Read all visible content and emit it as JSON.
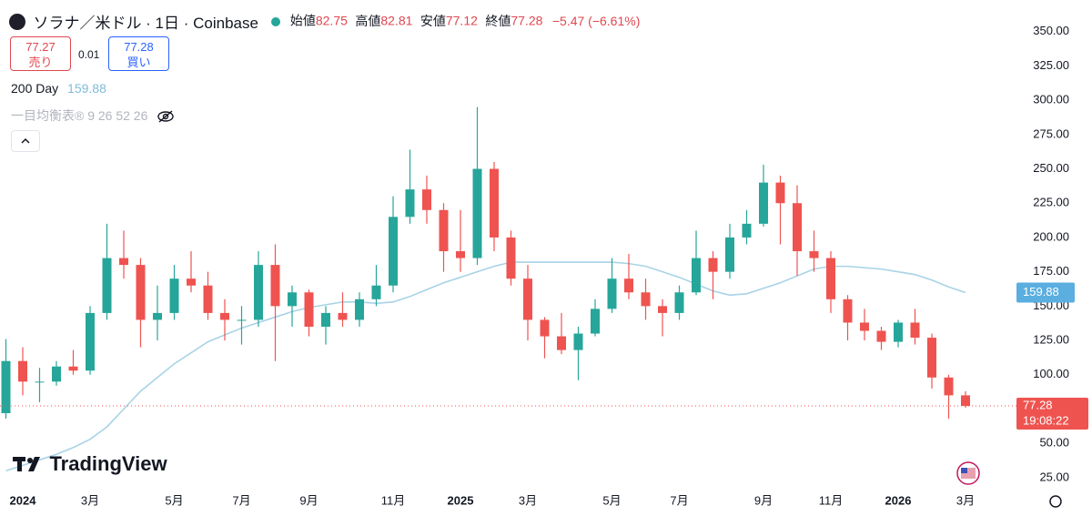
{
  "header": {
    "symbol": "ソラナ／米ドル · 1日 · Coinbase",
    "open_label": "始値",
    "open": "82.75",
    "high_label": "高値",
    "high": "82.81",
    "low_label": "安値",
    "low": "77.12",
    "close_label": "終値",
    "close": "77.28",
    "change": "−5.47 (−6.61%)",
    "sell_price": "77.27",
    "sell_label": "売り",
    "spread": "0.01",
    "buy_price": "77.28",
    "buy_label": "買い",
    "indicator": "一目均衡表® 9 26 52 26",
    "countdown": "19:08:22",
    "logo": "TradingView"
  },
  "chart_data": {
    "type": "candlestick",
    "categories": [
      null,
      "2024",
      null,
      null,
      null,
      "3月",
      null,
      null,
      null,
      null,
      "5月",
      null,
      null,
      null,
      "7月",
      null,
      null,
      null,
      "9月",
      null,
      null,
      null,
      null,
      "11月",
      null,
      null,
      null,
      "2025",
      null,
      null,
      null,
      "3月",
      null,
      null,
      null,
      null,
      "5月",
      null,
      null,
      null,
      "7月",
      null,
      null,
      null,
      null,
      "9月",
      null,
      null,
      null,
      "11月",
      null,
      null,
      null,
      "2026",
      null,
      null,
      null,
      "3月"
    ],
    "series": [
      {
        "up_color": "#26a69a",
        "down_color": "#ef5350",
        "open": [
          72,
          110,
          95,
          95,
          106,
          103,
          145,
          185,
          180,
          140,
          145,
          170,
          165,
          145,
          140,
          140,
          180,
          150,
          160,
          135,
          145,
          140,
          155,
          165,
          215,
          235,
          220,
          190,
          185,
          250,
          200,
          170,
          140,
          128,
          118,
          130,
          148,
          170,
          160,
          150,
          145,
          160,
          185,
          175,
          200,
          210,
          240,
          225,
          190,
          185,
          155,
          138,
          132,
          124,
          138,
          127,
          98,
          85
        ],
        "high": [
          126,
          120,
          105,
          110,
          118,
          150,
          210,
          205,
          185,
          165,
          180,
          190,
          175,
          155,
          150,
          190,
          195,
          165,
          162,
          150,
          160,
          160,
          180,
          230,
          264,
          245,
          225,
          220,
          295,
          255,
          205,
          180,
          142,
          145,
          135,
          155,
          185,
          188,
          170,
          155,
          165,
          205,
          190,
          210,
          220,
          253,
          245,
          238,
          205,
          190,
          158,
          148,
          135,
          140,
          148,
          130,
          100,
          88
        ],
        "low": [
          68,
          85,
          80,
          92,
          100,
          100,
          140,
          170,
          120,
          125,
          140,
          160,
          140,
          125,
          122,
          135,
          110,
          135,
          128,
          122,
          135,
          135,
          150,
          160,
          210,
          210,
          175,
          175,
          180,
          190,
          165,
          125,
          112,
          115,
          96,
          128,
          145,
          155,
          140,
          128,
          140,
          158,
          155,
          170,
          195,
          208,
          195,
          172,
          175,
          145,
          125,
          125,
          118,
          120,
          122,
          90,
          68,
          76
        ],
        "close": [
          110,
          95,
          95,
          106,
          103,
          145,
          185,
          180,
          140,
          145,
          170,
          165,
          145,
          140,
          140,
          180,
          150,
          160,
          135,
          145,
          140,
          155,
          165,
          215,
          235,
          220,
          190,
          185,
          250,
          200,
          170,
          140,
          128,
          118,
          130,
          148,
          170,
          160,
          150,
          145,
          160,
          185,
          175,
          200,
          210,
          240,
          225,
          190,
          185,
          155,
          138,
          132,
          124,
          138,
          127,
          98,
          85,
          77.28
        ]
      },
      {
        "name": "200 Day",
        "color": "#a8d3e6",
        "values": [
          30,
          34,
          38,
          42,
          47,
          53,
          62,
          75,
          88,
          98,
          108,
          116,
          124,
          129,
          134,
          138,
          142,
          146,
          149,
          151,
          153,
          153,
          152,
          153,
          157,
          162,
          167,
          171,
          175,
          179,
          182,
          182,
          182,
          182,
          182,
          182,
          182,
          181,
          179,
          175,
          171,
          166,
          161,
          158,
          159,
          163,
          167,
          172,
          177,
          179,
          179,
          178,
          177,
          175,
          173,
          169,
          164,
          159.88
        ]
      }
    ],
    "ylim": [
      15,
      373
    ],
    "yticks": [
      {
        "value": 350,
        "label": "350.00"
      },
      {
        "value": 325,
        "label": "325.00"
      },
      {
        "value": 300,
        "label": "300.00"
      },
      {
        "value": 275,
        "label": "275.00"
      },
      {
        "value": 250,
        "label": "250.00"
      },
      {
        "value": 225,
        "label": "225.00"
      },
      {
        "value": 200,
        "label": "200.00"
      },
      {
        "value": 175,
        "label": "175.00"
      },
      {
        "value": 150,
        "label": "150.00"
      },
      {
        "value": 125,
        "label": "125.00"
      },
      {
        "value": 100,
        "label": "100.00"
      },
      {
        "value": 50,
        "label": "50.00"
      },
      {
        "value": 25,
        "label": "25.00"
      }
    ],
    "grid": false
  }
}
